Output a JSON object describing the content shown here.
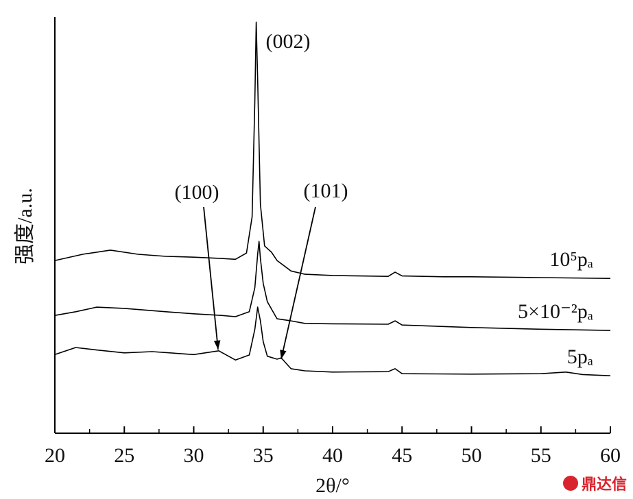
{
  "chart_data": {
    "type": "line",
    "xlabel": "2θ/°",
    "ylabel": "强度/a.u.",
    "xlim": [
      20,
      60
    ],
    "xticks": [
      20,
      25,
      30,
      35,
      40,
      45,
      50,
      55,
      60
    ],
    "ylim": [
      0,
      100
    ],
    "series": [
      {
        "name": "10⁵pₐ",
        "color": "#000000",
        "x": [
          20,
          22,
          24,
          26,
          28,
          30,
          32,
          33,
          33.8,
          34.2,
          34.4,
          34.5,
          34.6,
          34.8,
          35.1,
          35.6,
          36,
          37,
          38,
          40,
          42,
          44,
          44.5,
          45,
          48,
          50,
          55,
          60
        ],
        "values": [
          41.5,
          43,
          44,
          43,
          42.5,
          42.3,
          42,
          41.8,
          43.3,
          52,
          80,
          98.8,
          85,
          55,
          45,
          43.5,
          41.5,
          39,
          38.2,
          37.9,
          37.8,
          37.7,
          38.7,
          37.8,
          37.6,
          37.6,
          37.4,
          37.2
        ]
      },
      {
        "name": "5×10⁻²pₐ",
        "color": "#000000",
        "x": [
          20,
          21.5,
          23,
          25,
          28,
          30,
          32,
          33,
          34,
          34.4,
          34.6,
          34.7,
          34.8,
          35,
          35.3,
          36,
          37,
          38,
          40,
          44,
          44.5,
          45,
          50,
          55,
          60
        ],
        "values": [
          28.3,
          29.2,
          30.3,
          30,
          29.2,
          28.7,
          28.3,
          28,
          29.2,
          35,
          43,
          46.1,
          42,
          36,
          31.6,
          27.5,
          27,
          26.4,
          26.3,
          26.2,
          27,
          26,
          25.4,
          25,
          24.7
        ]
      },
      {
        "name": "5pₐ",
        "color": "#000000",
        "x": [
          20,
          21.5,
          23,
          25,
          27,
          30,
          31.8,
          33,
          34,
          34.4,
          34.6,
          34.8,
          35,
          35.3,
          36,
          36.3,
          37,
          38,
          40,
          44,
          44.5,
          45,
          50,
          55,
          56.8,
          58,
          60
        ],
        "values": [
          18.9,
          20.6,
          20,
          19.3,
          19.6,
          18.9,
          19.8,
          17.6,
          18.8,
          25,
          30.3,
          27,
          22,
          18.5,
          17.8,
          18.1,
          15.5,
          15,
          14.7,
          14.8,
          15.5,
          14.3,
          14.2,
          14.3,
          14.7,
          14.1,
          13.8
        ]
      }
    ],
    "annotations": [
      "(002)",
      "(100)",
      "(101)"
    ],
    "watermark": "鼎达信"
  }
}
